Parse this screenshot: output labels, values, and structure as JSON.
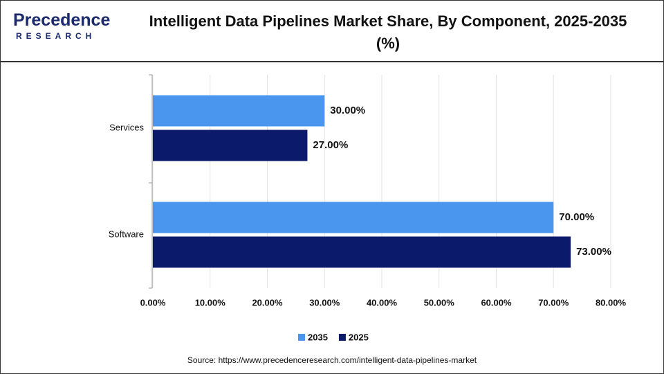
{
  "logo": {
    "name": "Precedence",
    "tagline": "RESEARCH"
  },
  "chart_data": {
    "type": "bar",
    "orientation": "horizontal",
    "title": "Intelligent Data Pipelines Market Share, By Component, 2025-2035 (%)",
    "categories": [
      "Services",
      "Software"
    ],
    "series": [
      {
        "name": "2035",
        "color": "#4a96ef",
        "values": [
          30,
          70
        ],
        "value_labels": [
          "30.00%",
          "70.00%"
        ]
      },
      {
        "name": "2025",
        "color": "#0c1a6b",
        "values": [
          27,
          73
        ],
        "value_labels": [
          "27.00%",
          "73.00%"
        ]
      }
    ],
    "xlim": [
      0,
      80
    ],
    "xticks": [
      {
        "value": 0,
        "label": "0.00%"
      },
      {
        "value": 10,
        "label": "10.00%"
      },
      {
        "value": 20,
        "label": "20.00%"
      },
      {
        "value": 30,
        "label": "30.00%"
      },
      {
        "value": 40,
        "label": "40.00%"
      },
      {
        "value": 50,
        "label": "50.00%"
      },
      {
        "value": 60,
        "label": "60.00%"
      },
      {
        "value": 70,
        "label": "70.00%"
      },
      {
        "value": 80,
        "label": "80.00%"
      }
    ],
    "grid": true,
    "legend": "bottom",
    "source": "Source: https://www.precedenceresearch.com/intelligent-data-pipelines-market"
  }
}
